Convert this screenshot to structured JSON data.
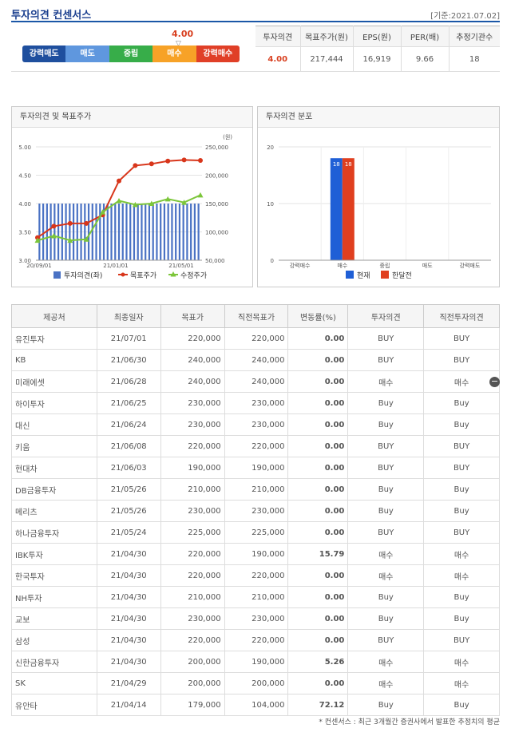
{
  "header": {
    "title": "투자의견 컨센서스",
    "date": "[기준:2021.07.02]"
  },
  "scale": {
    "value": "4.00",
    "arrow": "▽",
    "segments": [
      "강력매도",
      "매도",
      "중립",
      "매수",
      "강력매수"
    ]
  },
  "summary": {
    "headers": [
      "투자의견",
      "목표주가(원)",
      "EPS(원)",
      "PER(배)",
      "추정기관수"
    ],
    "values": [
      "4.00",
      "217,444",
      "16,919",
      "9.66",
      "18"
    ]
  },
  "chart1": {
    "title": "투자의견 및 목표주가"
  },
  "chart2": {
    "title": "투자의견 분포"
  },
  "chart_data": [
    {
      "type": "bar",
      "title": "투자의견 및 목표주가",
      "unit_label": "(원)",
      "y_left": {
        "ticks": [
          "5.00",
          "4.50",
          "4.00",
          "3.50",
          "3.00"
        ],
        "range": [
          3.0,
          5.0
        ]
      },
      "y_right": {
        "ticks": [
          "250,000",
          "200,000",
          "150,000",
          "100,000",
          "50,000"
        ],
        "range": [
          50000,
          250000
        ]
      },
      "x_ticks": [
        "20/09/01",
        "21/01/01",
        "21/05/01"
      ],
      "series": [
        {
          "name": "투자의견(좌)",
          "type": "bar",
          "color": "#4a72c4",
          "values": [
            4,
            4,
            4,
            4,
            4,
            4,
            4,
            4,
            4,
            4,
            4,
            4,
            4,
            4,
            4,
            4,
            4,
            4,
            4,
            4,
            4,
            4,
            4,
            4,
            4,
            4,
            4,
            4,
            4,
            4,
            4,
            4,
            4,
            4,
            4,
            4,
            4,
            4,
            4,
            4,
            4,
            4,
            4
          ]
        },
        {
          "name": "목표주가",
          "type": "line",
          "color": "#d8361b",
          "values": [
            90000,
            110000,
            115000,
            115000,
            130000,
            190000,
            217000,
            220000,
            225000,
            227000,
            226000
          ]
        },
        {
          "name": "수정주가",
          "type": "line",
          "color": "#7cc63a",
          "values": [
            85000,
            93000,
            85000,
            87000,
            135000,
            155000,
            148000,
            150000,
            158000,
            152000,
            165000
          ]
        }
      ]
    },
    {
      "type": "bar",
      "title": "투자의견 분포",
      "categories": [
        "강력매수",
        "매수",
        "중립",
        "매도",
        "강력매도"
      ],
      "ylim": [
        0,
        20
      ],
      "y_ticks": [
        "20",
        "10",
        "0"
      ],
      "series": [
        {
          "name": "현재",
          "color": "#1f5fd6",
          "values": [
            0,
            18,
            0,
            0,
            0
          ],
          "labels": [
            "",
            "18",
            "",
            "",
            ""
          ]
        },
        {
          "name": "한달전",
          "color": "#e03f1f",
          "values": [
            0,
            18,
            0,
            0,
            0
          ],
          "labels": [
            "",
            "18",
            "",
            "",
            ""
          ]
        }
      ]
    }
  ],
  "table": {
    "headers": [
      "제공처",
      "최종일자",
      "목표가",
      "직전목표가",
      "변동률(%)",
      "투자의견",
      "직전투자의견"
    ],
    "rows": [
      [
        "유진투자",
        "21/07/01",
        "220,000",
        "220,000",
        "0.00",
        "BUY",
        "BUY"
      ],
      [
        "KB",
        "21/06/30",
        "240,000",
        "240,000",
        "0.00",
        "BUY",
        "BUY"
      ],
      [
        "미래에셋",
        "21/06/28",
        "240,000",
        "240,000",
        "0.00",
        "매수",
        "매수"
      ],
      [
        "하이투자",
        "21/06/25",
        "230,000",
        "230,000",
        "0.00",
        "Buy",
        "Buy"
      ],
      [
        "대신",
        "21/06/24",
        "230,000",
        "230,000",
        "0.00",
        "Buy",
        "Buy"
      ],
      [
        "키움",
        "21/06/08",
        "220,000",
        "220,000",
        "0.00",
        "BUY",
        "BUY"
      ],
      [
        "현대차",
        "21/06/03",
        "190,000",
        "190,000",
        "0.00",
        "BUY",
        "BUY"
      ],
      [
        "DB금융투자",
        "21/05/26",
        "210,000",
        "210,000",
        "0.00",
        "Buy",
        "Buy"
      ],
      [
        "메리츠",
        "21/05/26",
        "230,000",
        "230,000",
        "0.00",
        "Buy",
        "Buy"
      ],
      [
        "하나금융투자",
        "21/05/24",
        "225,000",
        "225,000",
        "0.00",
        "BUY",
        "BUY"
      ],
      [
        "IBK투자",
        "21/04/30",
        "220,000",
        "190,000",
        "15.79",
        "매수",
        "매수"
      ],
      [
        "한국투자",
        "21/04/30",
        "220,000",
        "220,000",
        "0.00",
        "매수",
        "매수"
      ],
      [
        "NH투자",
        "21/04/30",
        "210,000",
        "210,000",
        "0.00",
        "Buy",
        "Buy"
      ],
      [
        "교보",
        "21/04/30",
        "230,000",
        "230,000",
        "0.00",
        "Buy",
        "Buy"
      ],
      [
        "삼성",
        "21/04/30",
        "220,000",
        "220,000",
        "0.00",
        "BUY",
        "BUY"
      ],
      [
        "신한금융투자",
        "21/04/30",
        "200,000",
        "190,000",
        "5.26",
        "매수",
        "매수"
      ],
      [
        "SK",
        "21/04/29",
        "200,000",
        "200,000",
        "0.00",
        "매수",
        "매수"
      ],
      [
        "유안타",
        "21/04/14",
        "179,000",
        "104,000",
        "72.12",
        "Buy",
        "Buy"
      ]
    ]
  },
  "footnote": "* 컨센서스 : 최근 3개월간 증권사에서 발표한 추정치의 평균"
}
